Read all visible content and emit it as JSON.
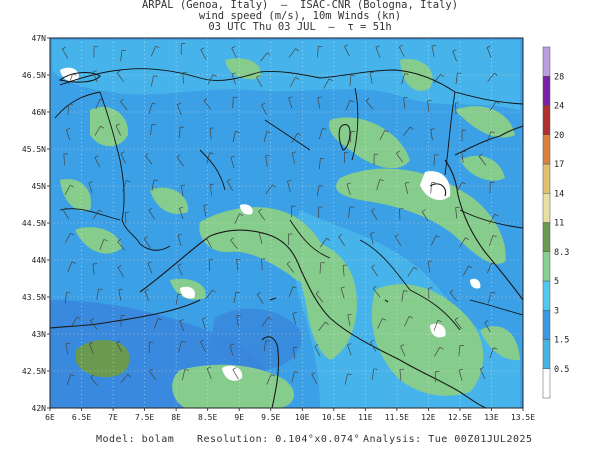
{
  "header": {
    "line1": "ARPAL (Genoa, Italy)  —  ISAC-CNR (Bologna, Italy)",
    "line2": "wind speed (m/s), 10m Winds (kn)",
    "line3": "03 UTC Thu 03 JUL  —  τ = 51h"
  },
  "map": {
    "lat_ticks": [
      "47N",
      "46.5N",
      "46N",
      "45.5N",
      "45N",
      "44.5N",
      "44N",
      "43.5N",
      "43N",
      "42.5N",
      "42N"
    ],
    "lon_ticks": [
      "6E",
      "6.5E",
      "7E",
      "7.5E",
      "8E",
      "8.5E",
      "9E",
      "9.5E",
      "10E",
      "10.5E",
      "11E",
      "11.5E",
      "12E",
      "12.5E",
      "13E",
      "13.5E"
    ],
    "colors": {
      "sea_blue": "#3ba0e6",
      "dark_blue": "#3a86dc",
      "light_blue": "#50c4ec",
      "green": "#86cc8c",
      "dark_green": "#6a9a50",
      "white": "#ffffff"
    }
  },
  "colorbar": {
    "labels": [
      "0.5",
      "1.5",
      "3",
      "5",
      "8.3",
      "11",
      "14",
      "17",
      "20",
      "24",
      "28"
    ],
    "colors": [
      "#ffffff",
      "#4ab2e0",
      "#3c98e0",
      "#52c8ee",
      "#88d090",
      "#6a9a50",
      "#e8e0a0",
      "#e0c070",
      "#d88040",
      "#b03030",
      "#7a20a8",
      "#b8a0e0"
    ]
  },
  "footer": {
    "model": "Model: bolam",
    "resolution": "Resolution: 0.104°x0.074°",
    "analysis": "Analysis: Tue 00Z01JUL2025"
  }
}
